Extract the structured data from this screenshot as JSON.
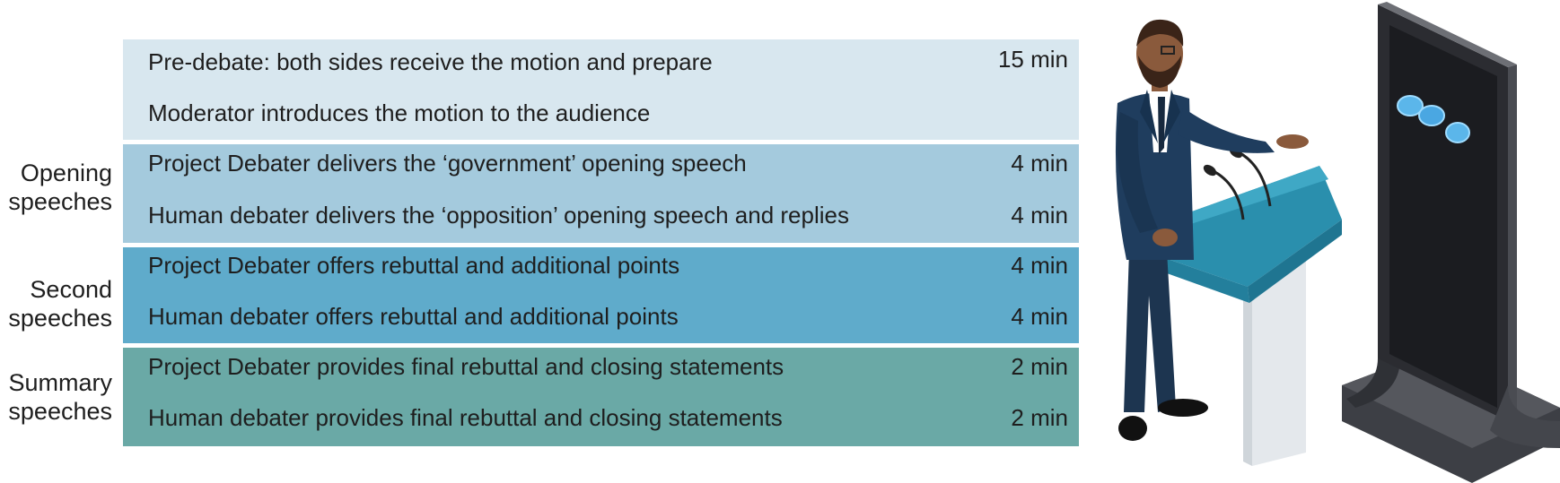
{
  "sections": [
    {
      "label": "",
      "rows": [
        {
          "text": "Pre-debate: both sides receive the motion and prepare",
          "duration": "15 min"
        },
        {
          "text": "Moderator introduces the motion to the audience",
          "duration": ""
        }
      ]
    },
    {
      "label_line1": "Opening",
      "label_line2": "speeches",
      "rows": [
        {
          "text": "Project Debater delivers the ‘government’ opening speech",
          "duration": "4 min"
        },
        {
          "text": "Human debater delivers the ‘opposition’ opening speech and replies",
          "duration": "4 min"
        }
      ]
    },
    {
      "label_line1": "Second",
      "label_line2": "speeches",
      "rows": [
        {
          "text": "Project Debater offers rebuttal and additional points",
          "duration": "4 min"
        },
        {
          "text": "Human debater offers rebuttal and additional points",
          "duration": "4 min"
        }
      ]
    },
    {
      "label_line1": "Summary",
      "label_line2": "speeches",
      "rows": [
        {
          "text": "Project Debater provides final rebuttal and closing statements",
          "duration": "2 min"
        },
        {
          "text": "Human debater provides final rebuttal and closing statements",
          "duration": "2 min"
        }
      ]
    }
  ],
  "colors": {
    "section0": "#d8e7ef",
    "section1": "#a4cadd",
    "section2": "#5fabcb",
    "section3": "#6aa9a6"
  },
  "illustration": {
    "human": "human-debater-at-podium",
    "machine": "project-debater-machine-tower"
  }
}
